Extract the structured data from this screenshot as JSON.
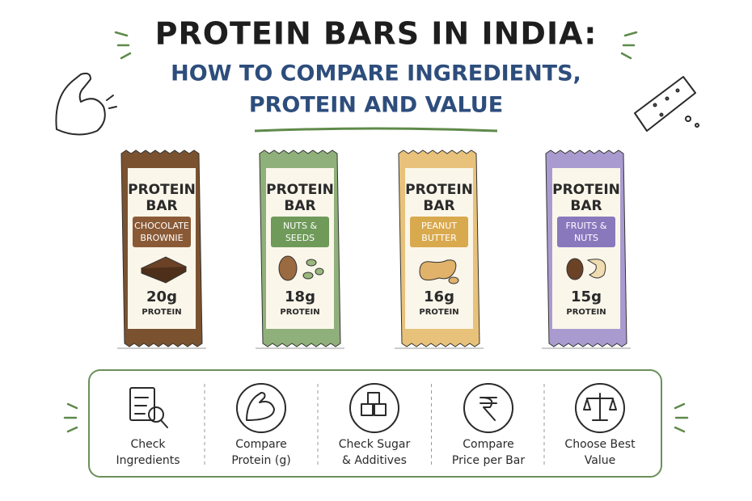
{
  "header": {
    "title": "PROTEIN BARS IN INDIA:",
    "subtitle": [
      "HOW TO COMPARE INGREDIENTS,",
      "PROTEIN AND VALUE"
    ]
  },
  "bars": [
    {
      "name": [
        "PROTEIN",
        "BAR"
      ],
      "flavor": [
        "CHOCOLATE",
        "BROWNIE"
      ],
      "protein": "20g",
      "unit": "PROTEIN",
      "color": "#7a5230",
      "tag": "#8a5a36"
    },
    {
      "name": [
        "PROTEIN",
        "BAR"
      ],
      "flavor": [
        "NUTS &",
        "SEEDS"
      ],
      "protein": "18g",
      "unit": "PROTEIN",
      "color": "#8fb07a",
      "tag": "#6f9a5a"
    },
    {
      "name": [
        "PROTEIN",
        "BAR"
      ],
      "flavor": [
        "PEANUT",
        "BUTTER"
      ],
      "protein": "16g",
      "unit": "PROTEIN",
      "color": "#e8c27a",
      "tag": "#d9a94e"
    },
    {
      "name": [
        "PROTEIN",
        "BAR"
      ],
      "flavor": [
        "FRUITS &",
        "NUTS"
      ],
      "protein": "15g",
      "unit": "PROTEIN",
      "color": "#a99bcf",
      "tag": "#8a78bd"
    }
  ],
  "steps": [
    {
      "label": [
        "Check",
        "Ingredients"
      ]
    },
    {
      "label": [
        "Compare",
        "Protein (g)"
      ]
    },
    {
      "label": [
        "Check Sugar",
        "& Additives"
      ]
    },
    {
      "label": [
        "Compare",
        "Price per Bar"
      ]
    },
    {
      "label": [
        "Choose Best",
        "Value"
      ]
    }
  ]
}
